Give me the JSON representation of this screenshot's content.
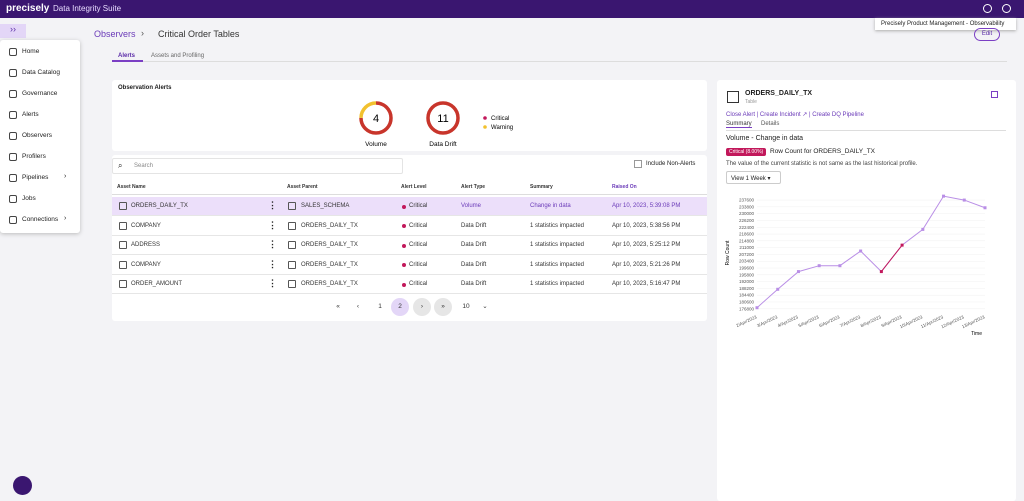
{
  "top_bar": {
    "brand": "precisely",
    "product": "Data Integrity Suite",
    "tooltip": "Precisely Product Management - Observability"
  },
  "nav": [
    {
      "label": "Home"
    },
    {
      "label": "Data Catalog"
    },
    {
      "label": "Governance"
    },
    {
      "label": "Alerts"
    },
    {
      "label": "Observers"
    },
    {
      "label": "Profilers"
    },
    {
      "label": "Pipelines"
    },
    {
      "label": "Jobs"
    },
    {
      "label": "Connections"
    }
  ],
  "breadcrumb": {
    "parent": "Observers",
    "current": "Critical Order Tables"
  },
  "edit_button": "Edit",
  "tabs": [
    "Alerts",
    "Assets and Profiling"
  ],
  "observation_alerts": {
    "title": "Observation Alerts",
    "gauges": [
      {
        "label": "Volume",
        "total": 4,
        "critical": 3,
        "warning": 1
      },
      {
        "label": "Data Drift",
        "total": 11,
        "critical": 11,
        "warning": 0
      }
    ],
    "legend": [
      "Critical",
      "Warning"
    ]
  },
  "search_placeholder": "Search",
  "include_non_alerts": "Include Non-Alerts",
  "table": {
    "columns": [
      "Asset Name",
      "Asset Parent",
      "Alert Level",
      "Alert Type",
      "Summary",
      "Raised On"
    ],
    "rows": [
      [
        "ORDERS_DAILY_TX",
        "SALES_SCHEMA",
        "Critical",
        "Volume",
        "Change in data",
        "Apr 10, 2023, 5:39:08 PM"
      ],
      [
        "COMPANY",
        "ORDERS_DAILY_TX",
        "Critical",
        "Data Drift",
        "1 statistics impacted",
        "Apr 10, 2023, 5:38:56 PM"
      ],
      [
        "ADDRESS",
        "ORDERS_DAILY_TX",
        "Critical",
        "Data Drift",
        "1 statistics impacted",
        "Apr 10, 2023, 5:25:12 PM"
      ],
      [
        "COMPANY",
        "ORDERS_DAILY_TX",
        "Critical",
        "Data Drift",
        "1 statistics impacted",
        "Apr 10, 2023, 5:21:26 PM"
      ],
      [
        "ORDER_AMOUNT",
        "ORDERS_DAILY_TX",
        "Critical",
        "Data Drift",
        "1 statistics impacted",
        "Apr 10, 2023, 5:16:47 PM"
      ]
    ]
  },
  "pagination": {
    "pages": [
      1,
      2
    ],
    "page_size": 10
  },
  "detail": {
    "name": "ORDERS_DAILY_TX",
    "kind": "Table",
    "actions": [
      "Close Alert",
      "Create Incident",
      "Create DQ Pipeline"
    ],
    "tabs": [
      "Summary",
      "Details"
    ],
    "heading": "Volume - Change in data",
    "badge": "Critical (8.00%)",
    "badge_text": "Row Count for ORDERS_DAILY_TX",
    "description": "The value of the current statistic is not same as the last historical profile.",
    "range": "View 1 Week",
    "chart_data": {
      "type": "line",
      "y_label": "Row Count",
      "x_label": "Time",
      "categories": [
        "2/Apr/2023",
        "3/Apr/2023",
        "4/Apr/2023",
        "5/Apr/2023",
        "6/Apr/2023",
        "7/Apr/2023",
        "8/Apr/2023",
        "9/Apr/2023",
        "10/Apr/2023",
        "11/Apr/2023",
        "12/Apr/2023",
        "13/Apr/2023"
      ],
      "values": [
        177400,
        187700,
        197600,
        200900,
        200900,
        209100,
        197600,
        212400,
        221200,
        239800,
        237600,
        233300
      ],
      "color": "#b98ee6",
      "point_colors": [
        "#b98ee6",
        "#b98ee6",
        "#b98ee6",
        "#b98ee6",
        "#b98ee6",
        "#b98ee6",
        "#c2185b",
        "#c2185b",
        "#b98ee6",
        "#b98ee6",
        "#b98ee6",
        "#b98ee6"
      ],
      "ylim": [
        175000,
        241000
      ],
      "yticks": [
        176800,
        180600,
        184400,
        188200,
        192000,
        195800,
        199600,
        203400,
        207200,
        211000,
        214800,
        218600,
        222400,
        226200,
        230000,
        233800,
        237600
      ],
      "grid": true
    }
  }
}
